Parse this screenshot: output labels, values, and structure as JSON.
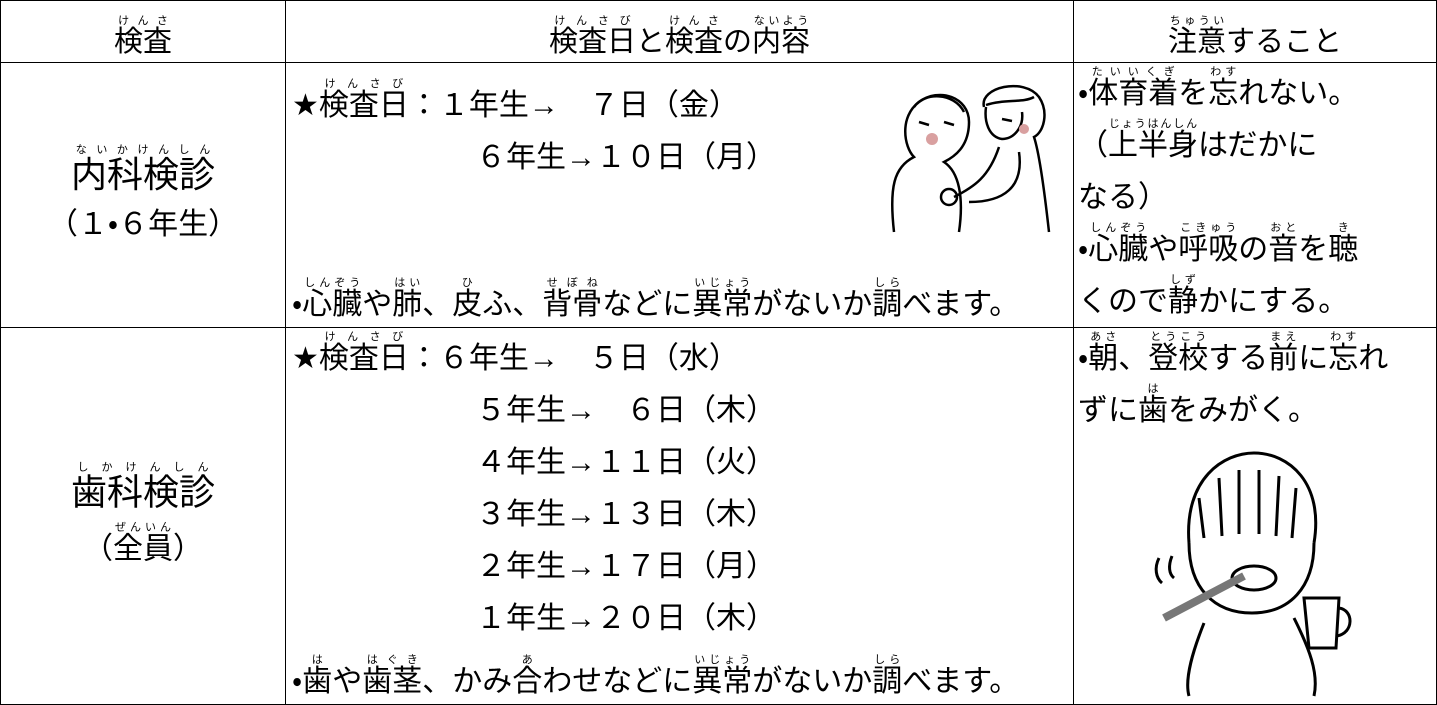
{
  "header": {
    "cells": [
      [
        [
          {
            "base": "検査",
            "ruby": "けんさ"
          }
        ]
      ],
      [
        [
          {
            "base": "検査日",
            "ruby": "けんさび"
          },
          "と",
          {
            "base": "検査",
            "ruby": "けんさ"
          },
          "の",
          {
            "base": "内容",
            "ruby": "ないよう"
          }
        ]
      ],
      [
        [
          {
            "base": "注意",
            "ruby": "ちゅうい"
          },
          "すること"
        ]
      ]
    ]
  },
  "rows": [
    {
      "exam": [
        [
          {
            "base": "内科検診",
            "ruby": "ないかけんしん"
          }
        ],
        [
          "（１・６年生）"
        ]
      ],
      "schedule": [
        [
          "★",
          {
            "base": "検査日",
            "ruby": "けんさび"
          },
          "：１年生→　７日（金）"
        ],
        [
          "６年生→１０日（月）"
        ]
      ],
      "description": [
        [
          "・",
          {
            "base": "心臓",
            "ruby": "しんぞう"
          },
          "や",
          {
            "base": "肺",
            "ruby": "はい"
          },
          "、",
          {
            "base": "皮",
            "ruby": "ひ"
          },
          "ふ、",
          {
            "base": "背骨",
            "ruby": "せぼね"
          },
          "などに",
          {
            "base": "異常",
            "ruby": "いじょう"
          },
          "がないか",
          {
            "base": "調",
            "ruby": "しら"
          },
          "べます。"
        ]
      ],
      "notes": [
        [
          "・",
          {
            "base": "体育着",
            "ruby": "たいいくぎ"
          },
          "を",
          {
            "base": "忘",
            "ruby": "わす"
          },
          "れない。"
        ],
        [
          "（",
          {
            "base": "上半身",
            "ruby": "じょうはんしん"
          },
          "はだかに"
        ],
        [
          "なる）"
        ],
        [
          "・",
          {
            "base": "心臓",
            "ruby": "しんぞう"
          },
          "や",
          {
            "base": "呼吸",
            "ruby": "こきゅう"
          },
          "の",
          {
            "base": "音",
            "ruby": "おと"
          },
          "を",
          {
            "base": "聴",
            "ruby": "き"
          }
        ],
        [
          "くので",
          {
            "base": "静",
            "ruby": "しず"
          },
          "かにする。"
        ]
      ]
    },
    {
      "exam": [
        [
          {
            "base": "歯科検診",
            "ruby": "しかけんしん"
          }
        ],
        [
          "（",
          {
            "base": "全員",
            "ruby": "ぜんいん"
          },
          "）"
        ]
      ],
      "schedule": [
        [
          "★",
          {
            "base": "検査日",
            "ruby": "けんさび"
          },
          "：６年生→　５日（水）"
        ],
        [
          "５年生→　６日（木）"
        ],
        [
          "４年生→１１日（火）"
        ],
        [
          "３年生→１３日（木）"
        ],
        [
          "２年生→１７日（月）"
        ],
        [
          "１年生→２０日（木）"
        ]
      ],
      "description": [
        [
          "・",
          {
            "base": "歯",
            "ruby": "は"
          },
          "や",
          {
            "base": "歯茎",
            "ruby": "はぐき"
          },
          "、かみ",
          {
            "base": "合",
            "ruby": "あ"
          },
          "わせなどに",
          {
            "base": "異常",
            "ruby": "いじょう"
          },
          "がないか",
          {
            "base": "調",
            "ruby": "しら"
          },
          "べます。"
        ]
      ],
      "notes": [
        [
          "・",
          {
            "base": "朝",
            "ruby": "あさ"
          },
          "、",
          {
            "base": "登校",
            "ruby": "とうこう"
          },
          "する",
          {
            "base": "前",
            "ruby": "まえ"
          },
          "に",
          {
            "base": "忘",
            "ruby": "わす"
          },
          "れ"
        ],
        [
          "ずに",
          {
            "base": "歯",
            "ruby": "は"
          },
          "をみがく。"
        ]
      ]
    }
  ]
}
